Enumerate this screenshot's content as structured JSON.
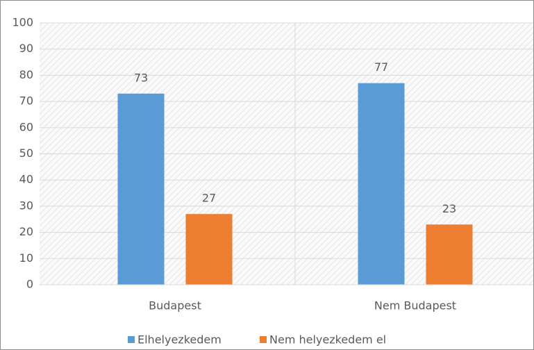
{
  "chart_data": {
    "type": "bar",
    "categories": [
      "Budapest",
      "Nem Budapest"
    ],
    "series": [
      {
        "name": "Elhelyezkedem",
        "color": "#5b9bd5",
        "values": [
          73,
          77
        ]
      },
      {
        "name": "Nem helyezkedem el",
        "color": "#ed7d31",
        "values": [
          27,
          23
        ]
      }
    ],
    "ylim": [
      0,
      100
    ],
    "yticks": [
      0,
      10,
      20,
      30,
      40,
      50,
      60,
      70,
      80,
      90,
      100
    ],
    "grid": true,
    "legend": "bottom"
  }
}
